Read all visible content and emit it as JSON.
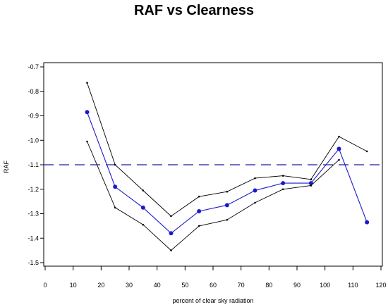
{
  "chart_data": {
    "type": "line",
    "title": "RAF vs Clearness",
    "xlabel": "percent of clear sky radiation",
    "ylabel": "RAF",
    "xlim": [
      0,
      120
    ],
    "ylim": [
      -1.5,
      -0.7
    ],
    "x_ticks": [
      0,
      10,
      20,
      30,
      40,
      50,
      60,
      70,
      80,
      90,
      100,
      110,
      120
    ],
    "x_tick_labels": [
      "0",
      "10",
      "20",
      "30",
      "40",
      "50",
      "60",
      "70",
      "80",
      "90",
      "100",
      "110",
      "120"
    ],
    "y_ticks": [
      -0.7,
      -0.8,
      -0.9,
      -1.0,
      -1.1,
      -1.2,
      -1.3,
      -1.4,
      -1.5
    ],
    "y_tick_labels": [
      "-0.7",
      "-0.8",
      "-0.9",
      "-1.0",
      "-1.1",
      "-1.2",
      "-1.3",
      "-1.4",
      "-1.5"
    ],
    "grid": false,
    "reference_line": {
      "y": -1.1,
      "style": "dashed",
      "color": "#1a1aa6"
    },
    "series": [
      {
        "role": "upper",
        "color": "#000000",
        "x": [
          15,
          25,
          35,
          45,
          55,
          65,
          75,
          85,
          95,
          105,
          115
        ],
        "values": [
          -0.765,
          -1.1,
          -1.205,
          -1.31,
          -1.23,
          -1.21,
          -1.155,
          -1.145,
          -1.16,
          -0.985,
          -1.045
        ]
      },
      {
        "role": "mean",
        "color": "#1a1acc",
        "x": [
          15,
          25,
          35,
          45,
          55,
          65,
          75,
          85,
          95,
          105,
          115
        ],
        "values": [
          -0.885,
          -1.19,
          -1.275,
          -1.38,
          -1.29,
          -1.265,
          -1.205,
          -1.175,
          -1.175,
          -1.035,
          -1.335
        ]
      },
      {
        "role": "lower",
        "color": "#000000",
        "x": [
          15,
          25,
          35,
          45,
          55,
          65,
          75,
          85,
          95,
          105
        ],
        "values": [
          -1.005,
          -1.275,
          -1.345,
          -1.45,
          -1.35,
          -1.325,
          -1.255,
          -1.2,
          -1.185,
          -1.08
        ]
      }
    ]
  }
}
